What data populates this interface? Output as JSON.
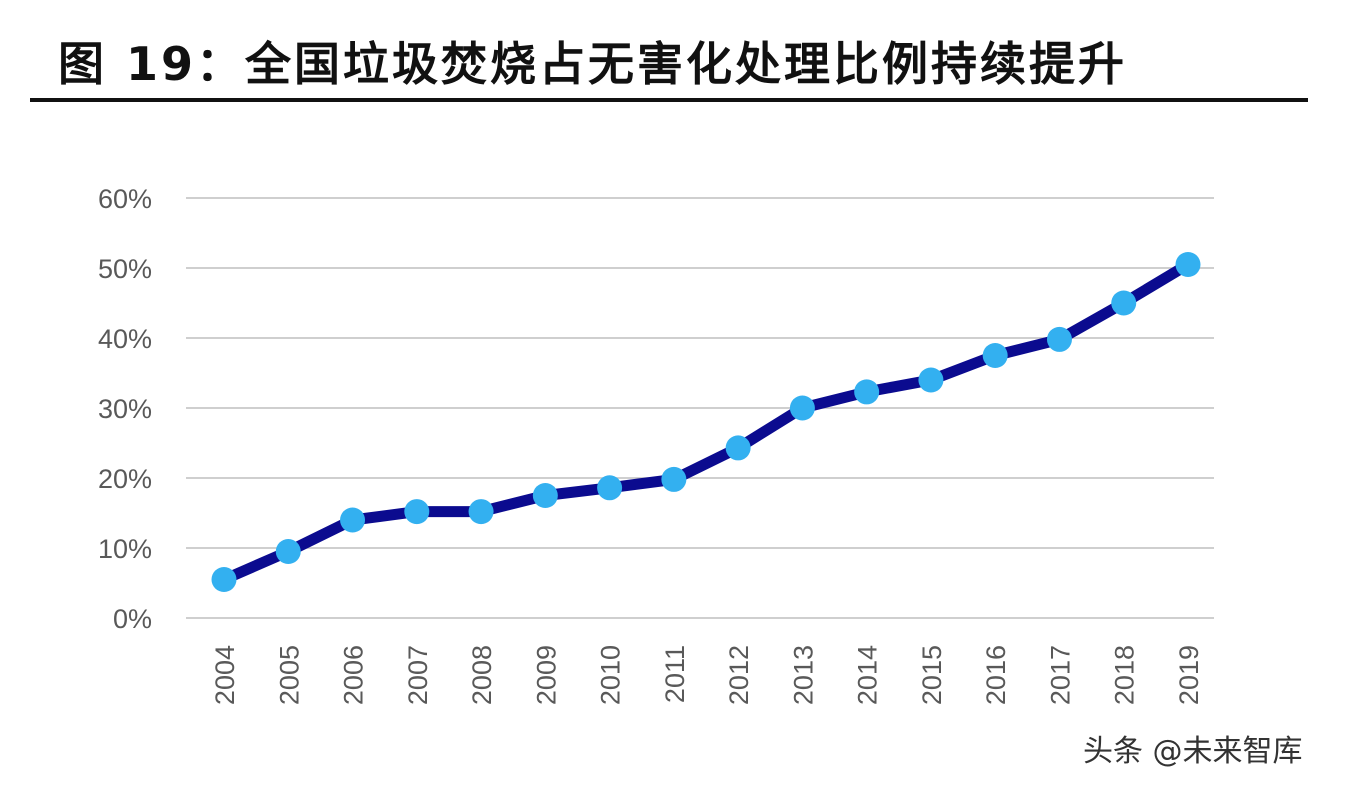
{
  "title": "图 19：全国垃圾焚烧占无害化处理比例持续提升",
  "watermark": "头条 @未来智库",
  "chart_data": {
    "type": "line",
    "title": "图 19：全国垃圾焚烧占无害化处理比例持续提升",
    "x": [
      "2004",
      "2005",
      "2006",
      "2007",
      "2008",
      "2009",
      "2010",
      "2011",
      "2012",
      "2013",
      "2014",
      "2015",
      "2016",
      "2017",
      "2018",
      "2019"
    ],
    "series": [
      {
        "values": [
          5.5,
          9.5,
          14.0,
          15.2,
          15.2,
          17.5,
          18.6,
          19.8,
          24.3,
          30.0,
          32.3,
          34.0,
          37.5,
          39.8,
          45.0,
          50.5
        ]
      }
    ],
    "y_ticks": [
      "0%",
      "10%",
      "20%",
      "30%",
      "40%",
      "50%",
      "60%"
    ],
    "ylim": [
      0,
      60
    ],
    "y_unit": "%",
    "grid": true,
    "legend": "none",
    "colors": {
      "line": "#0B0B8F",
      "marker": "#33B0F0",
      "grid": "#BFBFBF",
      "tick_text": "#595959"
    }
  }
}
